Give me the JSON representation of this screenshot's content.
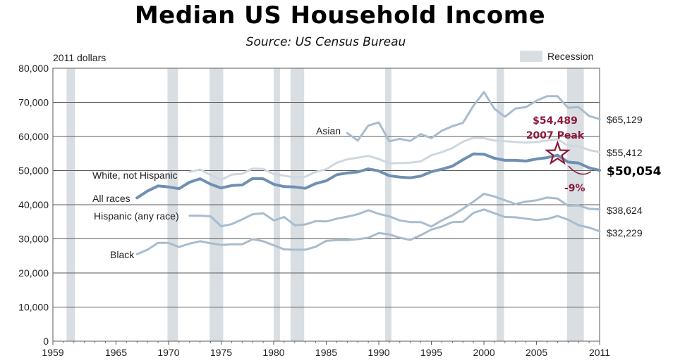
{
  "title": "Median US Household Income",
  "subtitle": "Source:  US Census Bureau",
  "chart_data": {
    "type": "line",
    "title": "Median US Household Income",
    "subtitle": "Source:  US Census Bureau",
    "ylabel": "2011 dollars",
    "xlabel": "",
    "xlim": [
      1959,
      2011
    ],
    "ylim": [
      0,
      80000
    ],
    "x_ticks": [
      1959,
      1965,
      1970,
      1975,
      1980,
      1985,
      1990,
      1995,
      2000,
      2005,
      2011
    ],
    "x_tick_labels": [
      "1959",
      "1965",
      "1970",
      "1975",
      "1980",
      "1985",
      "1990",
      "1995",
      "2000",
      "2005",
      "2011"
    ],
    "y_ticks": [
      0,
      10000,
      20000,
      30000,
      40000,
      50000,
      60000,
      70000,
      80000
    ],
    "y_tick_labels": [
      "0",
      "10,000",
      "20,000",
      "30,000",
      "40,000",
      "50,000",
      "60,000",
      "70,000",
      "80,000"
    ],
    "grid": "horizontal",
    "legend": {
      "label": "Recession",
      "color": "#d9dee3",
      "position": "top-right"
    },
    "recessions": [
      [
        1960.3,
        1961.1
      ],
      [
        1969.9,
        1970.9
      ],
      [
        1973.9,
        1975.2
      ],
      [
        1980.0,
        1980.6
      ],
      [
        1981.6,
        1982.9
      ],
      [
        1990.6,
        1991.2
      ],
      [
        2001.2,
        2001.9
      ],
      [
        2007.9,
        2009.5
      ]
    ],
    "series": [
      {
        "name": "Asian",
        "color": "#a9bccd",
        "width": 3,
        "end_label": "$65,129",
        "x": [
          1987,
          1988,
          1989,
          1990,
          1991,
          1992,
          1993,
          1994,
          1995,
          1996,
          1997,
          1998,
          1999,
          2000,
          2001,
          2002,
          2003,
          2004,
          2005,
          2006,
          2007,
          2008,
          2009,
          2010,
          2011
        ],
        "values": [
          61000,
          58800,
          63200,
          64100,
          58600,
          59300,
          58700,
          60700,
          59500,
          61700,
          63000,
          64000,
          69000,
          73000,
          68100,
          65800,
          68200,
          68600,
          70500,
          71800,
          71800,
          68400,
          68600,
          66000,
          65129
        ]
      },
      {
        "name": "White, not Hispanic",
        "color": "#cfd7e0",
        "width": 3,
        "end_label": "$55,412",
        "x": [
          1972,
          1973,
          1974,
          1975,
          1976,
          1977,
          1978,
          1979,
          1980,
          1981,
          1982,
          1983,
          1984,
          1985,
          1986,
          1987,
          1988,
          1989,
          1990,
          1991,
          1992,
          1993,
          1994,
          1995,
          1996,
          1997,
          1998,
          1999,
          2000,
          2001,
          2002,
          2003,
          2004,
          2005,
          2006,
          2007,
          2008,
          2009,
          2010,
          2011
        ],
        "values": [
          49600,
          50300,
          48700,
          47300,
          48800,
          49100,
          50600,
          50500,
          49000,
          48500,
          48000,
          48200,
          49600,
          50400,
          52300,
          53300,
          53800,
          54300,
          53400,
          52100,
          52200,
          52300,
          52700,
          54500,
          55400,
          56600,
          58500,
          59600,
          59500,
          58800,
          58600,
          58400,
          58200,
          58400,
          58800,
          59200,
          57300,
          57200,
          56000,
          55412
        ]
      },
      {
        "name": "All races",
        "color": "#6f8fb3",
        "width": 4,
        "end_label": "$50,054",
        "end_label_bold": true,
        "x": [
          1967,
          1968,
          1969,
          1970,
          1971,
          1972,
          1973,
          1974,
          1975,
          1976,
          1977,
          1978,
          1979,
          1980,
          1981,
          1982,
          1983,
          1984,
          1985,
          1986,
          1987,
          1988,
          1989,
          1990,
          1991,
          1992,
          1993,
          1994,
          1995,
          1996,
          1997,
          1998,
          1999,
          2000,
          2001,
          2002,
          2003,
          2004,
          2005,
          2006,
          2007,
          2008,
          2009,
          2010,
          2011
        ],
        "values": [
          42000,
          44000,
          45500,
          45200,
          44700,
          46600,
          47600,
          46000,
          44900,
          45600,
          45800,
          47700,
          47600,
          46000,
          45300,
          45200,
          44800,
          46200,
          47000,
          48800,
          49300,
          49600,
          50500,
          49900,
          48500,
          48100,
          47900,
          48400,
          49700,
          50400,
          51300,
          53200,
          54900,
          54800,
          53600,
          53000,
          53000,
          52800,
          53400,
          53800,
          54489,
          52500,
          52200,
          50800,
          50054
        ]
      },
      {
        "name": "Hispanic (any race)",
        "color": "#a9bccd",
        "width": 3,
        "end_label": "$38,624",
        "x": [
          1972,
          1973,
          1974,
          1975,
          1976,
          1977,
          1978,
          1979,
          1980,
          1981,
          1982,
          1983,
          1984,
          1985,
          1986,
          1987,
          1988,
          1989,
          1990,
          1991,
          1992,
          1993,
          1994,
          1995,
          1996,
          1997,
          1998,
          1999,
          2000,
          2001,
          2002,
          2003,
          2004,
          2005,
          2006,
          2007,
          2008,
          2009,
          2010,
          2011
        ],
        "values": [
          36800,
          36800,
          36600,
          33700,
          34300,
          35700,
          37200,
          37500,
          35400,
          36400,
          34000,
          34200,
          35200,
          35100,
          35900,
          36500,
          37200,
          38400,
          37300,
          36600,
          35400,
          34900,
          34900,
          33600,
          35400,
          36900,
          38800,
          40900,
          43200,
          42400,
          41300,
          40200,
          40900,
          41300,
          42100,
          41800,
          39700,
          39800,
          38800,
          38624
        ]
      },
      {
        "name": "Black",
        "color": "#a9bccd",
        "width": 3,
        "end_label": "$32,229",
        "x": [
          1967,
          1968,
          1969,
          1970,
          1971,
          1972,
          1973,
          1974,
          1975,
          1976,
          1977,
          1978,
          1979,
          1980,
          1981,
          1982,
          1983,
          1984,
          1985,
          1986,
          1987,
          1988,
          1989,
          1990,
          1991,
          1992,
          1993,
          1994,
          1995,
          1996,
          1997,
          1998,
          1999,
          2000,
          2001,
          2002,
          2003,
          2004,
          2005,
          2006,
          2007,
          2008,
          2009,
          2010,
          2011
        ],
        "values": [
          25500,
          26800,
          28800,
          28800,
          27600,
          28600,
          29300,
          28700,
          28200,
          28400,
          28400,
          29900,
          29300,
          28100,
          26900,
          26800,
          26800,
          27700,
          29400,
          29600,
          29600,
          29900,
          30300,
          31700,
          31300,
          30300,
          29700,
          31100,
          32700,
          33600,
          34900,
          35000,
          37600,
          38600,
          37500,
          36400,
          36300,
          35900,
          35500,
          35800,
          36700,
          35600,
          34000,
          33300,
          32229
        ]
      }
    ],
    "annotations": [
      {
        "text": "$54,489",
        "year": 2007,
        "value": 54489,
        "color": "#8b1a3c"
      },
      {
        "text": "2007 Peak",
        "year": 2007,
        "value": 54489,
        "color": "#8b1a3c"
      },
      {
        "text": "-9%",
        "color": "#8b1a3c"
      }
    ]
  }
}
